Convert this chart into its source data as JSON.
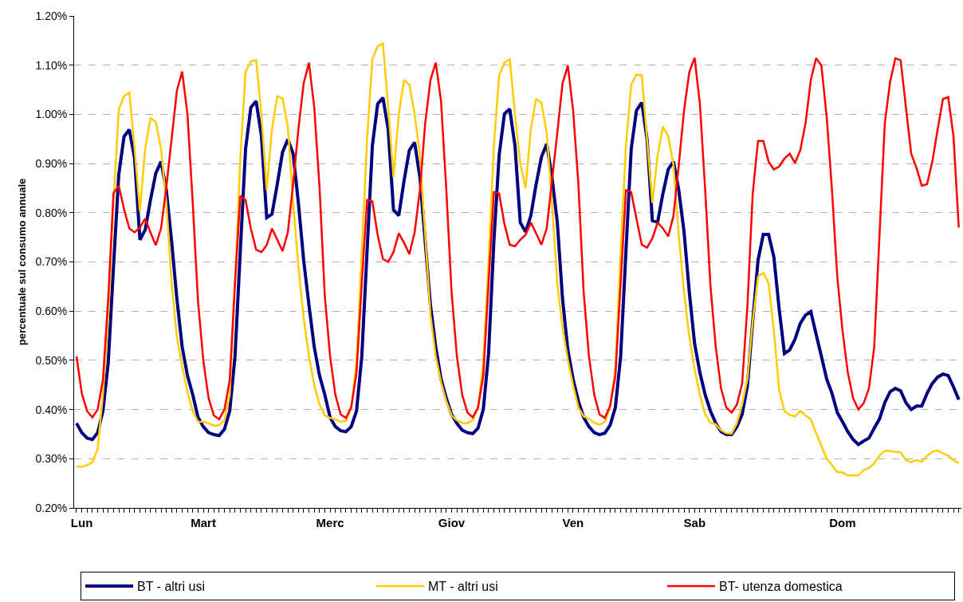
{
  "chart_data": {
    "type": "line",
    "ylabel": "percentuale sul consumo annuale",
    "categories": [
      null,
      "Lun",
      null,
      null,
      null,
      null,
      null,
      null,
      null,
      null,
      null,
      null,
      null,
      null,
      null,
      null,
      null,
      null,
      null,
      null,
      null,
      null,
      null,
      null,
      "Mart",
      null,
      null,
      null,
      null,
      null,
      null,
      null,
      null,
      null,
      null,
      null,
      null,
      null,
      null,
      null,
      null,
      null,
      null,
      null,
      null,
      null,
      null,
      null,
      "Merc",
      null,
      null,
      null,
      null,
      null,
      null,
      null,
      null,
      null,
      null,
      null,
      null,
      null,
      null,
      null,
      null,
      null,
      null,
      null,
      null,
      null,
      null,
      "Giov",
      null,
      null,
      null,
      null,
      null,
      null,
      null,
      null,
      null,
      null,
      null,
      null,
      null,
      null,
      null,
      null,
      null,
      null,
      null,
      null,
      null,
      null,
      "Ven",
      null,
      null,
      null,
      null,
      null,
      null,
      null,
      null,
      null,
      null,
      null,
      null,
      null,
      null,
      null,
      null,
      null,
      null,
      null,
      null,
      null,
      null,
      "Sab",
      null,
      null,
      null,
      null,
      null,
      null,
      null,
      null,
      null,
      null,
      null,
      null,
      null,
      null,
      null,
      null,
      null,
      null,
      null,
      null,
      null,
      null,
      null,
      null,
      null,
      null,
      null,
      "Dom",
      null,
      null,
      null,
      null,
      null,
      null,
      null,
      null,
      null,
      null,
      null,
      null,
      null,
      null,
      null,
      null,
      null,
      null,
      null,
      null,
      null,
      null
    ],
    "series": [
      {
        "name": "BT - altri usi",
        "color": "#000080",
        "values": [
          0.372,
          0.353,
          0.342,
          0.339,
          0.353,
          0.397,
          0.495,
          0.69,
          0.878,
          0.955,
          0.969,
          0.91,
          0.745,
          0.765,
          0.826,
          0.88,
          0.904,
          0.846,
          0.742,
          0.625,
          0.527,
          0.469,
          0.43,
          0.384,
          0.365,
          0.353,
          0.349,
          0.347,
          0.36,
          0.397,
          0.508,
          0.722,
          0.93,
          1.014,
          1.027,
          0.956,
          0.79,
          0.797,
          0.858,
          0.923,
          0.949,
          0.92,
          0.82,
          0.703,
          0.612,
          0.527,
          0.469,
          0.43,
          0.384,
          0.365,
          0.357,
          0.355,
          0.365,
          0.397,
          0.508,
          0.722,
          0.936,
          1.021,
          1.034,
          0.969,
          0.806,
          0.794,
          0.865,
          0.927,
          0.943,
          0.872,
          0.742,
          0.612,
          0.527,
          0.462,
          0.423,
          0.39,
          0.372,
          0.358,
          0.353,
          0.351,
          0.362,
          0.4,
          0.514,
          0.742,
          0.917,
          1.001,
          1.011,
          0.936,
          0.78,
          0.761,
          0.794,
          0.858,
          0.913,
          0.94,
          0.872,
          0.781,
          0.625,
          0.521,
          0.462,
          0.417,
          0.384,
          0.365,
          0.353,
          0.349,
          0.352,
          0.368,
          0.404,
          0.508,
          0.722,
          0.93,
          1.008,
          1.024,
          0.949,
          0.784,
          0.781,
          0.839,
          0.888,
          0.904,
          0.846,
          0.761,
          0.638,
          0.534,
          0.475,
          0.43,
          0.397,
          0.372,
          0.355,
          0.349,
          0.349,
          0.365,
          0.39,
          0.449,
          0.579,
          0.703,
          0.756,
          0.756,
          0.71,
          0.605,
          0.514,
          0.521,
          0.543,
          0.575,
          0.592,
          0.599,
          0.553,
          0.508,
          0.462,
          0.433,
          0.394,
          0.375,
          0.355,
          0.339,
          0.329,
          0.336,
          0.342,
          0.362,
          0.381,
          0.414,
          0.436,
          0.443,
          0.438,
          0.414,
          0.4,
          0.407,
          0.407,
          0.433,
          0.453,
          0.466,
          0.472,
          0.469,
          0.446,
          0.42
        ]
      },
      {
        "name": "MT - altri usi",
        "color": "#ffcc00",
        "values": [
          0.284,
          0.284,
          0.287,
          0.293,
          0.32,
          0.43,
          0.592,
          0.82,
          1.01,
          1.037,
          1.044,
          0.93,
          0.803,
          0.93,
          0.992,
          0.985,
          0.93,
          0.82,
          0.657,
          0.547,
          0.488,
          0.436,
          0.397,
          0.375,
          0.375,
          0.372,
          0.367,
          0.368,
          0.378,
          0.43,
          0.657,
          0.91,
          1.086,
          1.108,
          1.11,
          1.0,
          0.846,
          0.97,
          1.037,
          1.032,
          0.975,
          0.82,
          0.69,
          0.586,
          0.508,
          0.449,
          0.41,
          0.388,
          0.383,
          0.38,
          0.375,
          0.377,
          0.404,
          0.495,
          0.722,
          0.95,
          1.112,
          1.138,
          1.144,
          1.014,
          0.872,
          1.001,
          1.07,
          1.06,
          1.001,
          0.917,
          0.755,
          0.592,
          0.508,
          0.456,
          0.417,
          0.388,
          0.378,
          0.373,
          0.372,
          0.378,
          0.404,
          0.495,
          0.703,
          0.936,
          1.079,
          1.105,
          1.112,
          1.0,
          0.9,
          0.85,
          0.97,
          1.032,
          1.023,
          0.962,
          0.82,
          0.657,
          0.566,
          0.501,
          0.449,
          0.404,
          0.386,
          0.381,
          0.373,
          0.369,
          0.375,
          0.404,
          0.482,
          0.722,
          0.936,
          1.06,
          1.081,
          1.079,
          0.949,
          0.82,
          0.917,
          0.975,
          0.956,
          0.897,
          0.755,
          0.638,
          0.547,
          0.482,
          0.43,
          0.39,
          0.373,
          0.37,
          0.358,
          0.352,
          0.351,
          0.372,
          0.41,
          0.462,
          0.579,
          0.67,
          0.678,
          0.657,
          0.56,
          0.44,
          0.397,
          0.389,
          0.386,
          0.397,
          0.388,
          0.38,
          0.352,
          0.326,
          0.3,
          0.287,
          0.273,
          0.272,
          0.266,
          0.266,
          0.266,
          0.277,
          0.281,
          0.291,
          0.306,
          0.316,
          0.316,
          0.314,
          0.313,
          0.297,
          0.293,
          0.297,
          0.294,
          0.306,
          0.314,
          0.317,
          0.311,
          0.306,
          0.297,
          0.291
        ]
      },
      {
        "name": "BT- utenza domestica",
        "color": "#ff0000",
        "values": [
          0.508,
          0.433,
          0.397,
          0.384,
          0.4,
          0.46,
          0.625,
          0.84,
          0.855,
          0.807,
          0.768,
          0.76,
          0.77,
          0.788,
          0.76,
          0.734,
          0.768,
          0.852,
          0.95,
          1.048,
          1.087,
          1.0,
          0.82,
          0.62,
          0.5,
          0.423,
          0.388,
          0.38,
          0.4,
          0.46,
          0.657,
          0.834,
          0.826,
          0.768,
          0.725,
          0.72,
          0.734,
          0.768,
          0.745,
          0.722,
          0.76,
          0.858,
          0.97,
          1.063,
          1.105,
          1.014,
          0.852,
          0.63,
          0.508,
          0.43,
          0.39,
          0.383,
          0.404,
          0.475,
          0.657,
          0.826,
          0.823,
          0.755,
          0.706,
          0.7,
          0.72,
          0.758,
          0.739,
          0.716,
          0.76,
          0.846,
          0.982,
          1.07,
          1.105,
          1.027,
          0.846,
          0.638,
          0.508,
          0.43,
          0.394,
          0.384,
          0.404,
          0.469,
          0.657,
          0.842,
          0.839,
          0.777,
          0.735,
          0.732,
          0.745,
          0.755,
          0.78,
          0.758,
          0.735,
          0.768,
          0.865,
          0.962,
          1.063,
          1.099,
          1.008,
          0.858,
          0.638,
          0.508,
          0.43,
          0.39,
          0.383,
          0.407,
          0.469,
          0.657,
          0.846,
          0.842,
          0.787,
          0.735,
          0.729,
          0.748,
          0.78,
          0.768,
          0.752,
          0.794,
          0.897,
          1.008,
          1.086,
          1.115,
          1.021,
          0.846,
          0.651,
          0.527,
          0.443,
          0.404,
          0.394,
          0.41,
          0.453,
          0.612,
          0.839,
          0.946,
          0.946,
          0.904,
          0.888,
          0.894,
          0.91,
          0.92,
          0.901,
          0.927,
          0.982,
          1.07,
          1.114,
          1.099,
          0.995,
          0.846,
          0.67,
          0.56,
          0.475,
          0.423,
          0.4,
          0.413,
          0.443,
          0.527,
          0.755,
          0.982,
          1.066,
          1.114,
          1.11,
          1.014,
          0.92,
          0.891,
          0.855,
          0.858,
          0.904,
          0.969,
          1.031,
          1.035,
          0.956,
          0.77
        ]
      }
    ],
    "ylim": [
      0.2,
      1.2
    ],
    "yticks": [
      {
        "value": 0.2,
        "label": "0.20%"
      },
      {
        "value": 0.3,
        "label": "0.30%"
      },
      {
        "value": 0.4,
        "label": "0.40%"
      },
      {
        "value": 0.5,
        "label": "0.50%"
      },
      {
        "value": 0.6,
        "label": "0.60%"
      },
      {
        "value": 0.7,
        "label": "0.70%"
      },
      {
        "value": 0.8,
        "label": "0.80%"
      },
      {
        "value": 0.9,
        "label": "0.90%"
      },
      {
        "value": 1.0,
        "label": "1.00%"
      },
      {
        "value": 1.1,
        "label": "1.10%"
      },
      {
        "value": 1.2,
        "label": "1.20%"
      }
    ],
    "grid": "y",
    "legend": "bottom",
    "marker": "none",
    "line_style": "solid"
  }
}
